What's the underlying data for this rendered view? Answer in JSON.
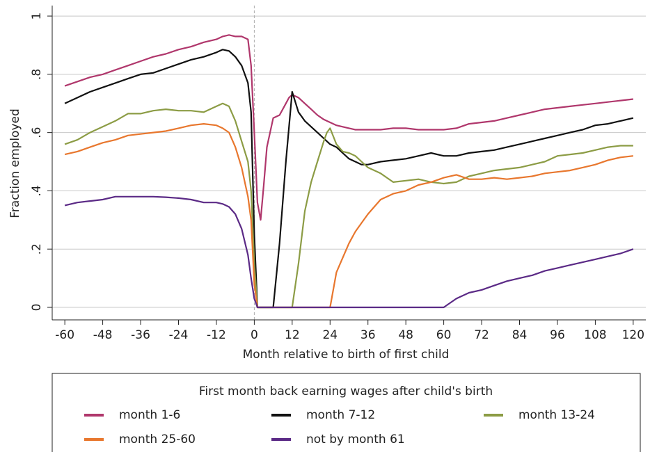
{
  "chart_data": {
    "type": "line",
    "x_label": "Month relative to birth of first child",
    "y_label": "Fraction employed",
    "legend_title": "First month back earning wages after child's birth",
    "xlim": [
      -64,
      124
    ],
    "ylim": [
      -0.043,
      1.036
    ],
    "xticks": [
      -60,
      -48,
      -36,
      -24,
      -12,
      0,
      12,
      24,
      36,
      48,
      60,
      72,
      84,
      96,
      108,
      120
    ],
    "yticks": [
      0,
      {
        "value": 0.2,
        "label": ".2"
      },
      {
        "value": 0.4,
        "label": ".4"
      },
      {
        "value": 0.6,
        "label": ".6"
      },
      {
        "value": 0.8,
        "label": ".8"
      },
      1
    ],
    "grid": true,
    "vline": 0,
    "x": [
      -60,
      -56,
      -52,
      -48,
      -44,
      -40,
      -36,
      -32,
      -28,
      -24,
      -20,
      -16,
      -12,
      -10,
      -8,
      -6,
      -4,
      -2,
      -1,
      0,
      1,
      2,
      3,
      4,
      6,
      8,
      10,
      11,
      12,
      14,
      16,
      18,
      20,
      22,
      23,
      24,
      26,
      28,
      30,
      32,
      34,
      36,
      40,
      44,
      48,
      52,
      56,
      60,
      64,
      68,
      72,
      76,
      80,
      84,
      88,
      92,
      96,
      100,
      104,
      108,
      112,
      116,
      120
    ],
    "series": [
      {
        "name": "month 1-6",
        "color": "#b0376c",
        "values": [
          0.76,
          0.775,
          0.79,
          0.8,
          0.815,
          0.83,
          0.845,
          0.86,
          0.87,
          0.885,
          0.895,
          0.91,
          0.92,
          0.93,
          0.935,
          0.93,
          0.93,
          0.92,
          0.83,
          0.6,
          0.36,
          0.3,
          0.42,
          0.55,
          0.65,
          0.66,
          0.7,
          0.72,
          0.73,
          0.72,
          0.7,
          0.68,
          0.66,
          0.645,
          0.64,
          0.635,
          0.625,
          0.62,
          0.615,
          0.61,
          0.61,
          0.61,
          0.61,
          0.615,
          0.615,
          0.61,
          0.61,
          0.61,
          0.615,
          0.63,
          0.635,
          0.64,
          0.65,
          0.66,
          0.67,
          0.68,
          0.685,
          0.69,
          0.695,
          0.7,
          0.705,
          0.71,
          0.715
        ]
      },
      {
        "name": "month 7-12",
        "color": "#111111",
        "values": [
          0.7,
          0.72,
          0.74,
          0.755,
          0.77,
          0.785,
          0.8,
          0.805,
          0.82,
          0.835,
          0.85,
          0.86,
          0.875,
          0.885,
          0.88,
          0.86,
          0.83,
          0.77,
          0.67,
          0.25,
          0,
          0,
          0,
          0,
          0,
          0.22,
          0.5,
          0.62,
          0.74,
          0.67,
          0.64,
          0.62,
          0.6,
          0.58,
          0.57,
          0.56,
          0.55,
          0.53,
          0.51,
          0.5,
          0.49,
          0.49,
          0.5,
          0.505,
          0.51,
          0.52,
          0.53,
          0.52,
          0.52,
          0.53,
          0.535,
          0.54,
          0.55,
          0.56,
          0.57,
          0.58,
          0.59,
          0.6,
          0.61,
          0.625,
          0.63,
          0.64,
          0.65
        ]
      },
      {
        "name": "month 13-24",
        "color": "#8c9c45",
        "values": [
          0.56,
          0.575,
          0.6,
          0.62,
          0.64,
          0.665,
          0.665,
          0.675,
          0.68,
          0.675,
          0.675,
          0.67,
          0.69,
          0.7,
          0.69,
          0.64,
          0.57,
          0.5,
          0.4,
          0.15,
          0,
          0,
          0,
          0,
          0,
          0,
          0,
          0,
          0,
          0.15,
          0.33,
          0.43,
          0.5,
          0.57,
          0.6,
          0.615,
          0.56,
          0.535,
          0.53,
          0.52,
          0.5,
          0.48,
          0.46,
          0.43,
          0.435,
          0.44,
          0.43,
          0.425,
          0.43,
          0.45,
          0.46,
          0.47,
          0.475,
          0.48,
          0.49,
          0.5,
          0.52,
          0.525,
          0.53,
          0.54,
          0.55,
          0.555,
          0.555
        ]
      },
      {
        "name": "month 25-60",
        "color": "#e8772e",
        "values": [
          0.525,
          0.535,
          0.55,
          0.565,
          0.575,
          0.59,
          0.595,
          0.6,
          0.605,
          0.615,
          0.625,
          0.63,
          0.625,
          0.615,
          0.6,
          0.55,
          0.48,
          0.38,
          0.3,
          0.08,
          0,
          0,
          0,
          0,
          0,
          0,
          0,
          0,
          0,
          0,
          0,
          0,
          0,
          0,
          0,
          0,
          0.12,
          0.17,
          0.22,
          0.26,
          0.29,
          0.32,
          0.37,
          0.39,
          0.4,
          0.42,
          0.43,
          0.445,
          0.455,
          0.44,
          0.44,
          0.445,
          0.44,
          0.445,
          0.45,
          0.46,
          0.465,
          0.47,
          0.48,
          0.49,
          0.505,
          0.515,
          0.52
        ]
      },
      {
        "name": "not by month 61",
        "color": "#5b2a86",
        "values": [
          0.35,
          0.36,
          0.365,
          0.37,
          0.38,
          0.38,
          0.38,
          0.38,
          0.378,
          0.375,
          0.37,
          0.36,
          0.36,
          0.355,
          0.345,
          0.32,
          0.27,
          0.18,
          0.1,
          0.03,
          0,
          0,
          0,
          0,
          0,
          0,
          0,
          0,
          0,
          0,
          0,
          0,
          0,
          0,
          0,
          0,
          0,
          0,
          0,
          0,
          0,
          0,
          0,
          0,
          0,
          0,
          0,
          0,
          0.03,
          0.05,
          0.06,
          0.075,
          0.09,
          0.1,
          0.11,
          0.125,
          0.135,
          0.145,
          0.155,
          0.165,
          0.175,
          0.185,
          0.2
        ]
      }
    ]
  }
}
